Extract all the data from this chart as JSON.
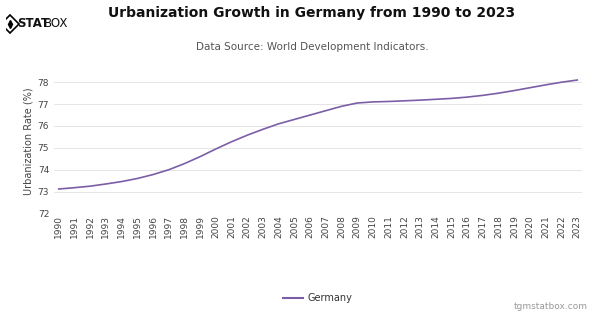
{
  "title": "Urbanization Growth in Germany from 1990 to 2023",
  "subtitle": "Data Source: World Development Indicators.",
  "ylabel": "Urbanization Rate (%)",
  "legend_label": "Germany",
  "watermark": "tgmstatbox.com",
  "logo_text": "STATBOX",
  "line_color": "#7b5ea7",
  "background_color": "#ffffff",
  "years": [
    1990,
    1991,
    1992,
    1993,
    1994,
    1995,
    1996,
    1997,
    1998,
    1999,
    2000,
    2001,
    2002,
    2003,
    2004,
    2005,
    2006,
    2007,
    2008,
    2009,
    2010,
    2011,
    2012,
    2013,
    2014,
    2015,
    2016,
    2017,
    2018,
    2019,
    2020,
    2021,
    2022,
    2023
  ],
  "values": [
    73.12,
    73.18,
    73.25,
    73.35,
    73.46,
    73.6,
    73.78,
    74.0,
    74.28,
    74.6,
    74.95,
    75.28,
    75.58,
    75.85,
    76.1,
    76.3,
    76.5,
    76.7,
    76.9,
    77.05,
    77.1,
    77.12,
    77.15,
    77.18,
    77.22,
    77.26,
    77.32,
    77.4,
    77.5,
    77.62,
    77.75,
    77.88,
    78.0,
    78.1
  ],
  "ylim": [
    72,
    78.6
  ],
  "yticks": [
    72,
    73,
    74,
    75,
    76,
    77,
    78
  ],
  "title_fontsize": 10,
  "subtitle_fontsize": 7.5,
  "ylabel_fontsize": 7,
  "tick_fontsize": 6.5,
  "grid_color": "#e0e0e0",
  "logo_color": "#111111"
}
